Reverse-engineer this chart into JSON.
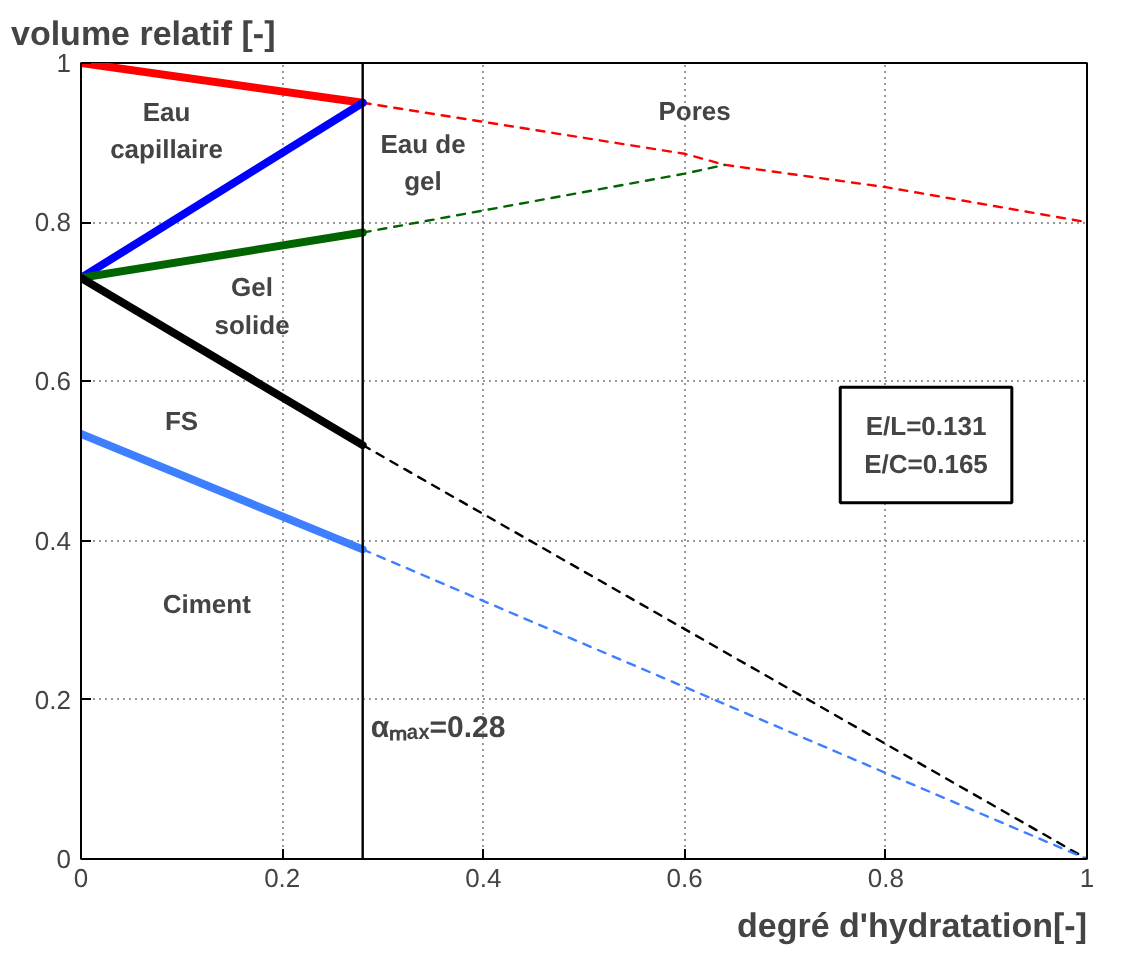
{
  "chart_data": {
    "type": "line",
    "xlabel": "degré d'hydratation[-]",
    "ylabel": "volume relatif [-]",
    "xlim": [
      0,
      1
    ],
    "ylim": [
      0,
      1
    ],
    "xticks": [
      0,
      0.2,
      0.4,
      0.6,
      0.8,
      1
    ],
    "yticks": [
      0,
      0.2,
      0.4,
      0.6,
      0.8,
      1
    ],
    "grid": true,
    "series": [
      {
        "color": "#ff0000",
        "line_style": "solid",
        "x": [
          0,
          0.28
        ],
        "values": [
          1,
          0.95
        ]
      },
      {
        "color": "#ff0000",
        "line_style": "dashed",
        "x": [
          0.28,
          0.6,
          0.64,
          0.8,
          1
        ],
        "values": [
          0.95,
          0.886,
          0.872,
          0.844,
          0.8
        ]
      },
      {
        "color": "#0000ff",
        "line_style": "solid",
        "x": [
          0,
          0.28
        ],
        "values": [
          0.73,
          0.95
        ]
      },
      {
        "color": "#006400",
        "line_style": "solid",
        "x": [
          0,
          0.28
        ],
        "values": [
          0.73,
          0.787
        ]
      },
      {
        "color": "#006400",
        "line_style": "dashed",
        "x": [
          0.28,
          0.6,
          0.64
        ],
        "values": [
          0.787,
          0.861,
          0.872
        ]
      },
      {
        "color": "#000000",
        "line_style": "solid",
        "x": [
          0,
          0.28
        ],
        "values": [
          0.73,
          0.52
        ]
      },
      {
        "color": "#000000",
        "line_style": "dashed",
        "x": [
          0.28,
          1
        ],
        "values": [
          0.52,
          0
        ]
      },
      {
        "color": "#3d7fff",
        "line_style": "solid",
        "x": [
          0,
          0.28
        ],
        "values": [
          0.534,
          0.389
        ]
      },
      {
        "color": "#3d7fff",
        "line_style": "dashed",
        "x": [
          0.28,
          1
        ],
        "values": [
          0.389,
          0
        ]
      }
    ],
    "ref_lines": [
      {
        "axis": "x",
        "value": 0.28,
        "label": "αₘₐₓ=0.28",
        "color": "#000000"
      }
    ],
    "annotations": [
      "Eau\ncapillaire",
      "Eau de\ngel",
      "Pores",
      "Gel\nsolide",
      "FS",
      "Ciment",
      "E/L=0.131\nE/C=0.165"
    ]
  }
}
